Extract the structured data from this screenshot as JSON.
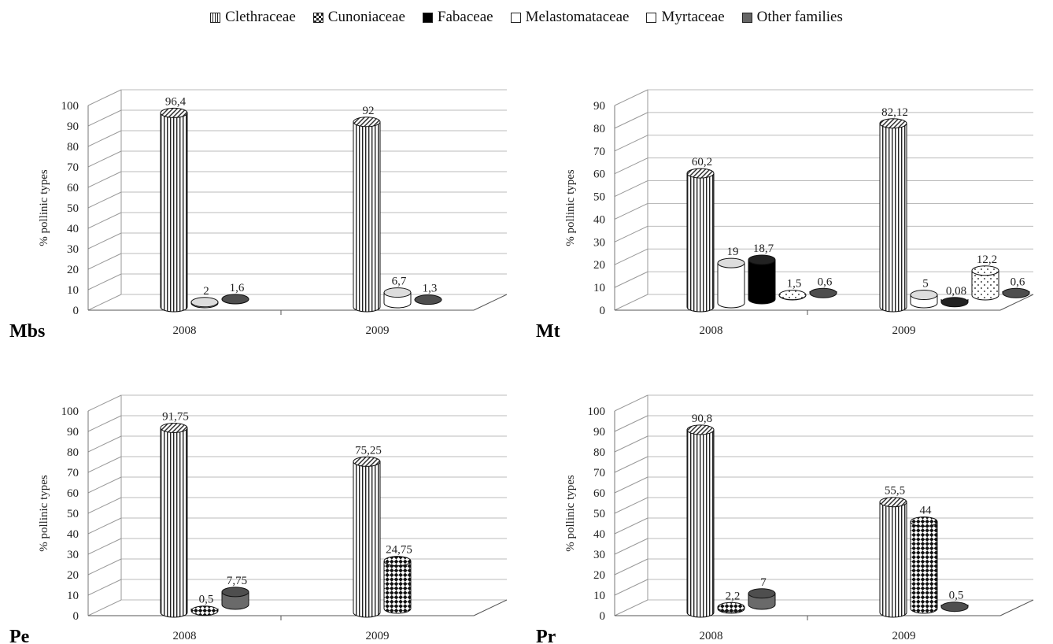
{
  "legend": [
    {
      "name": "Clethraceae",
      "pattern": "vertical-lines"
    },
    {
      "name": "Cunoniaceae",
      "pattern": "checker"
    },
    {
      "name": "Fabaceae",
      "pattern": "solid-black"
    },
    {
      "name": "Melastomataceae",
      "pattern": "dots"
    },
    {
      "name": "Myrtaceae",
      "pattern": "white"
    },
    {
      "name": "Other families",
      "pattern": "gray"
    }
  ],
  "chart_data": [
    {
      "type": "bar",
      "site_label": "Mbs",
      "ylabel": "% pollinic types",
      "ylim": [
        0,
        100
      ],
      "categories": [
        "2008",
        "2009"
      ],
      "bars": [
        [
          {
            "series": "Clethraceae",
            "value": 96.4,
            "label": "96,4"
          },
          {
            "series": "Myrtaceae",
            "value": 2,
            "label": "2"
          },
          {
            "series": "Other families",
            "value": 1.6,
            "label": "1,6"
          }
        ],
        [
          {
            "series": "Clethraceae",
            "value": 92,
            "label": "92"
          },
          {
            "series": "Myrtaceae",
            "value": 6.7,
            "label": "6,7"
          },
          {
            "series": "Other families",
            "value": 1.3,
            "label": "1,3"
          }
        ]
      ]
    },
    {
      "type": "bar",
      "site_label": "Mt",
      "ylabel": "% pollinic types",
      "ylim": [
        0,
        90
      ],
      "categories": [
        "2008",
        "2009"
      ],
      "bars": [
        [
          {
            "series": "Clethraceae",
            "value": 60.2,
            "label": "60,2"
          },
          {
            "series": "Myrtaceae",
            "value": 19,
            "label": "19"
          },
          {
            "series": "Fabaceae",
            "value": 18.7,
            "label": "18,7"
          },
          {
            "series": "Melastomataceae",
            "value": 1.5,
            "label": "1,5"
          },
          {
            "series": "Other families",
            "value": 0.6,
            "label": "0,6"
          }
        ],
        [
          {
            "series": "Clethraceae",
            "value": 82.12,
            "label": "82,12"
          },
          {
            "series": "Myrtaceae",
            "value": 5,
            "label": "5"
          },
          {
            "series": "Fabaceae",
            "value": 0.08,
            "label": "0,08"
          },
          {
            "series": "Melastomataceae",
            "value": 12.2,
            "label": "12,2"
          },
          {
            "series": "Other families",
            "value": 0.6,
            "label": "0,6"
          }
        ]
      ]
    },
    {
      "type": "bar",
      "site_label": "Pe",
      "ylabel": "% pollinic types",
      "ylim": [
        0,
        100
      ],
      "categories": [
        "2008",
        "2009"
      ],
      "bars": [
        [
          {
            "series": "Clethraceae",
            "value": 91.75,
            "label": "91,75"
          },
          {
            "series": "Cunoniaceae",
            "value": 0.5,
            "label": "0,5"
          },
          {
            "series": "Other families",
            "value": 7.75,
            "label": "7,75"
          }
        ],
        [
          {
            "series": "Clethraceae",
            "value": 75.25,
            "label": "75,25"
          },
          {
            "series": "Cunoniaceae",
            "value": 24.75,
            "label": "24,75"
          }
        ]
      ]
    },
    {
      "type": "bar",
      "site_label": "Pr",
      "ylabel": "% pollinic types",
      "ylim": [
        0,
        100
      ],
      "categories": [
        "2008",
        "2009"
      ],
      "bars": [
        [
          {
            "series": "Clethraceae",
            "value": 90.8,
            "label": "90,8"
          },
          {
            "series": "Cunoniaceae",
            "value": 2.2,
            "label": "2,2"
          },
          {
            "series": "Other families",
            "value": 7,
            "label": "7"
          }
        ],
        [
          {
            "series": "Clethraceae",
            "value": 55.5,
            "label": "55,5"
          },
          {
            "series": "Cunoniaceae",
            "value": 44,
            "label": "44"
          },
          {
            "series": "Other families",
            "value": 0.5,
            "label": "0,5"
          }
        ]
      ]
    }
  ]
}
